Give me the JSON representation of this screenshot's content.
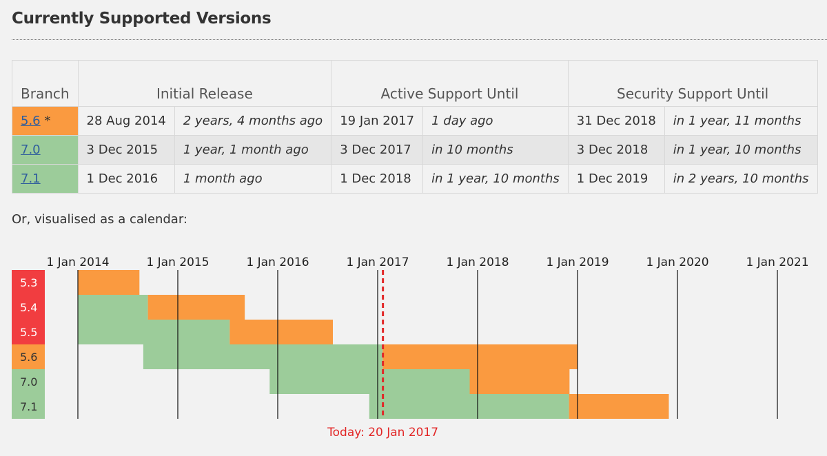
{
  "page": {
    "heading": "Currently Supported Versions",
    "caption": "Or, visualised as a calendar:"
  },
  "table": {
    "headers": [
      "Branch",
      "Initial Release",
      "Active Support Until",
      "Security Support Until"
    ],
    "rows": [
      {
        "branch": "5.6",
        "suffix": " *",
        "status_color": "#fa9a40",
        "release_date": "28 Aug 2014",
        "release_rel": "2 years, 4 months ago",
        "active_date": "19 Jan 2017",
        "active_rel": "1 day ago",
        "security_date": "31 Dec 2018",
        "security_rel": "in 1 year, 11 months"
      },
      {
        "branch": "7.0",
        "suffix": "",
        "status_color": "#9ccc9a",
        "release_date": "3 Dec 2015",
        "release_rel": "1 year, 1 month ago",
        "active_date": "3 Dec 2017",
        "active_rel": "in 10 months",
        "security_date": "3 Dec 2018",
        "security_rel": "in 1 year, 10 months"
      },
      {
        "branch": "7.1",
        "suffix": "",
        "status_color": "#9ccc9a",
        "release_date": "1 Dec 2016",
        "release_rel": "1 month ago",
        "active_date": "1 Dec 2018",
        "active_rel": "in 1 year, 10 months",
        "security_date": "1 Dec 2019",
        "security_rel": "in 2 years, 10 months"
      }
    ]
  },
  "calendar": {
    "year_labels": [
      "1 Jan 2014",
      "1 Jan 2015",
      "1 Jan 2016",
      "1 Jan 2017",
      "1 Jan 2018",
      "1 Jan 2019",
      "1 Jan 2020",
      "1 Jan 2021"
    ],
    "today_label": "Today: 20 Jan 2017",
    "today": "2017-01-20",
    "colors": {
      "active": "#9ccc9a",
      "security": "#fa9a40",
      "eol": "#f13d40",
      "today": "#e22626"
    },
    "branches": [
      {
        "name": "5.3",
        "status": "eol",
        "release": "2009-06-30",
        "active_end": "2014-01-01",
        "security_end": "2014-08-14"
      },
      {
        "name": "5.4",
        "status": "eol",
        "release": "2012-03-01",
        "active_end": "2014-09-14",
        "security_end": "2015-09-03"
      },
      {
        "name": "5.5",
        "status": "eol",
        "release": "2013-06-20",
        "active_end": "2015-07-10",
        "security_end": "2016-07-21"
      },
      {
        "name": "5.6",
        "status": "security",
        "release": "2014-08-28",
        "active_end": "2017-01-19",
        "security_end": "2018-12-31"
      },
      {
        "name": "7.0",
        "status": "active",
        "release": "2015-12-03",
        "active_end": "2017-12-03",
        "security_end": "2018-12-03"
      },
      {
        "name": "7.1",
        "status": "active",
        "release": "2016-12-01",
        "active_end": "2018-12-01",
        "security_end": "2019-12-01"
      }
    ]
  }
}
